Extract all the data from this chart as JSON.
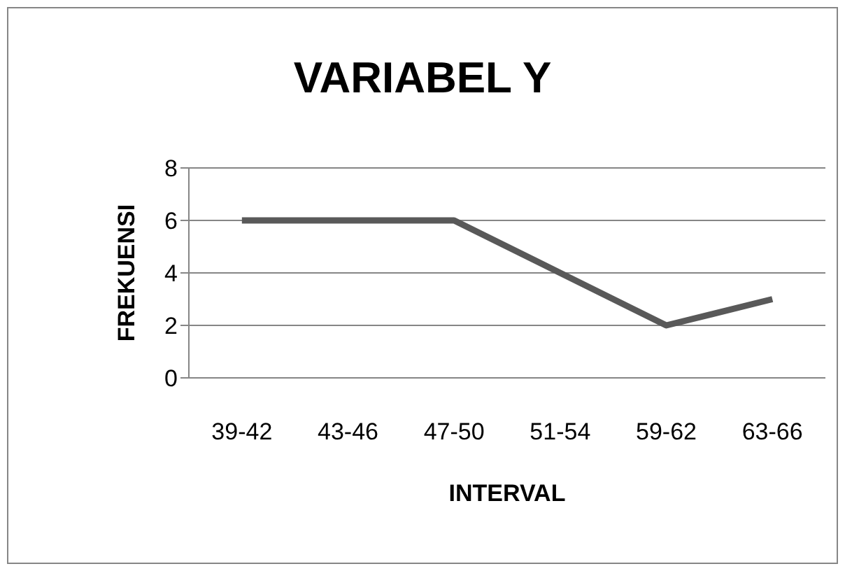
{
  "chart_data": {
    "type": "line",
    "title": "VARIABEL Y",
    "xlabel": "INTERVAL",
    "ylabel": "FREKUENSI",
    "categories": [
      "39-42",
      "43-46",
      "47-50",
      "51-54",
      "59-62",
      "63-66"
    ],
    "series": [
      {
        "color": "#595959",
        "values": [
          6,
          6,
          6,
          4,
          2,
          3
        ]
      }
    ],
    "ylim": [
      0,
      8
    ],
    "yticks": [
      0,
      2,
      4,
      6,
      8
    ],
    "grid": "y",
    "marker": "none"
  }
}
